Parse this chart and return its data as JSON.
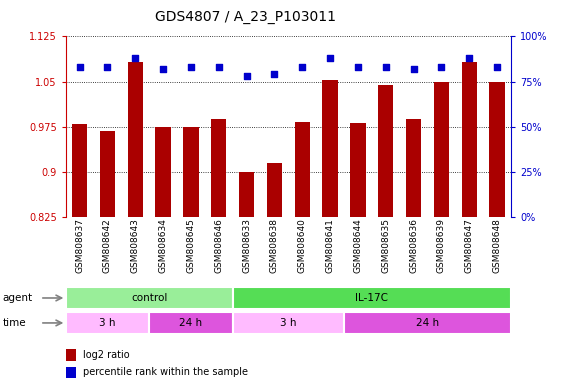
{
  "title": "GDS4807 / A_23_P103011",
  "samples": [
    "GSM808637",
    "GSM808642",
    "GSM808643",
    "GSM808634",
    "GSM808645",
    "GSM808646",
    "GSM808633",
    "GSM808638",
    "GSM808640",
    "GSM808641",
    "GSM808644",
    "GSM808635",
    "GSM808636",
    "GSM808639",
    "GSM808647",
    "GSM808648"
  ],
  "log2_ratio": [
    0.98,
    0.968,
    1.083,
    0.975,
    0.975,
    0.988,
    0.9,
    0.915,
    0.983,
    1.052,
    0.982,
    1.045,
    0.988,
    1.05,
    1.083,
    1.05
  ],
  "percentile": [
    83,
    83,
    88,
    82,
    83,
    83,
    78,
    79,
    83,
    88,
    83,
    83,
    82,
    83,
    88,
    83
  ],
  "ylim_left": [
    0.825,
    1.125
  ],
  "ylim_right": [
    0,
    100
  ],
  "yticks_left": [
    0.825,
    0.9,
    0.975,
    1.05,
    1.125
  ],
  "yticks_right": [
    0,
    25,
    50,
    75,
    100
  ],
  "bar_color": "#AA0000",
  "dot_color": "#0000CC",
  "bg_color": "#ffffff",
  "grid_color": "#000000",
  "agent_groups": [
    {
      "label": "control",
      "start": 0,
      "end": 6,
      "color": "#99EE99"
    },
    {
      "label": "IL-17C",
      "start": 6,
      "end": 16,
      "color": "#55DD55"
    }
  ],
  "time_groups": [
    {
      "label": "3 h",
      "start": 0,
      "end": 3,
      "color": "#FFBBFF"
    },
    {
      "label": "24 h",
      "start": 3,
      "end": 6,
      "color": "#DD55DD"
    },
    {
      "label": "3 h",
      "start": 6,
      "end": 10,
      "color": "#FFBBFF"
    },
    {
      "label": "24 h",
      "start": 10,
      "end": 16,
      "color": "#DD55DD"
    }
  ],
  "legend_items": [
    {
      "label": "log2 ratio",
      "color": "#AA0000"
    },
    {
      "label": "percentile rank within the sample",
      "color": "#0000CC"
    }
  ],
  "left_axis_color": "#CC0000",
  "right_axis_color": "#0000CC",
  "title_fontsize": 10,
  "tick_fontsize": 7,
  "label_fontsize": 8
}
